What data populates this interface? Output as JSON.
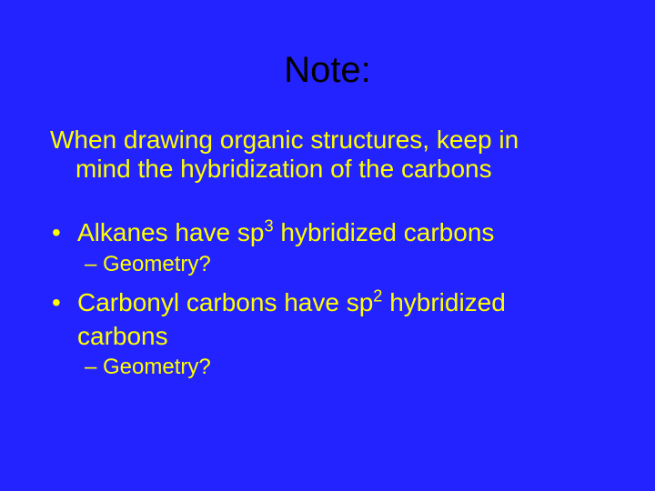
{
  "slide": {
    "background_color": "#2323ff",
    "text_color": "#ffff00",
    "title_color": "#000000",
    "title_fontsize": 40,
    "body_fontsize": 28,
    "sub_fontsize": 24,
    "font_family": "Arial"
  },
  "title": "Note:",
  "intro_line1": "When drawing organic structures, keep in",
  "intro_line2": "mind the hybridization of the carbons",
  "bullets": [
    {
      "text_before_sup": "Alkanes have sp",
      "sup": "3",
      "text_after_sup": " hybridized carbons",
      "sub": "Geometry?"
    },
    {
      "text_before_sup": "Carbonyl carbons have sp",
      "sup": "2",
      "text_after_sup": " hybridized",
      "continuation": "carbons",
      "sub": "Geometry?"
    }
  ]
}
